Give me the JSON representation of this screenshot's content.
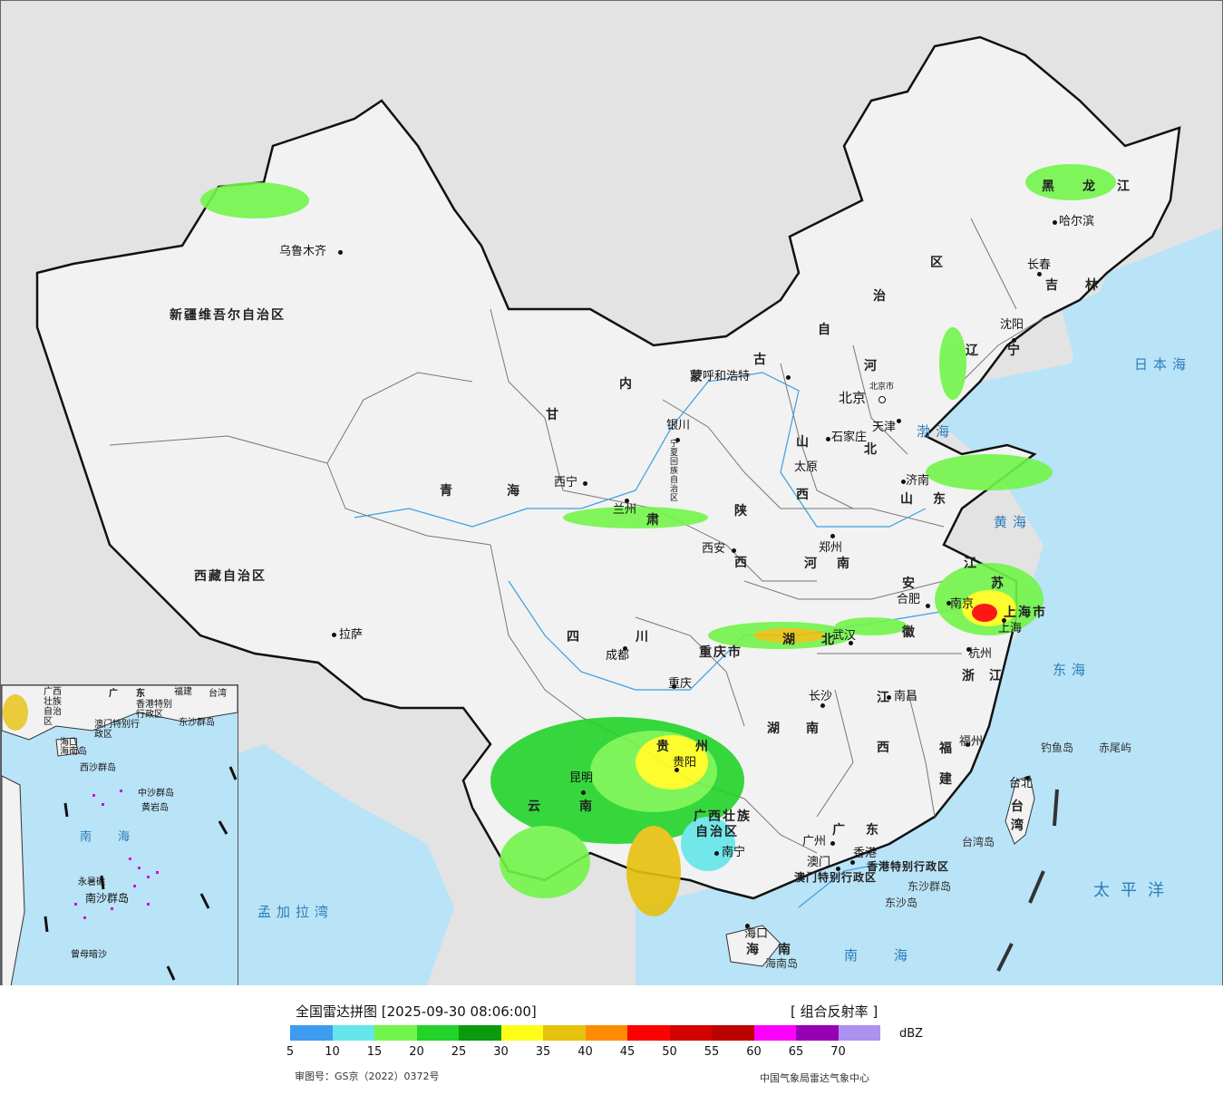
{
  "title": "全国雷达拼图 [2025-09-30 08:06:00]",
  "product": "[ 组合反射率 ]",
  "unit": "dBZ",
  "legend": {
    "colors": [
      "#3d9cf0",
      "#64e6ea",
      "#72f54a",
      "#22d32a",
      "#0b9a0b",
      "#fefe1a",
      "#e6c10d",
      "#fe8c00",
      "#fe0000",
      "#d50000",
      "#bd0000",
      "#fe00fe",
      "#9600b4",
      "#ad90f0"
    ],
    "ticks": [
      "5",
      "10",
      "15",
      "20",
      "25",
      "30",
      "35",
      "40",
      "45",
      "50",
      "55",
      "60",
      "65",
      "70"
    ]
  },
  "review_number": "审图号：GS京（2022）0372号",
  "producer": "中国气象局雷达气象中心",
  "provinces": [
    "新疆维吾尔自治区",
    "西藏自治区",
    "青",
    "海",
    "甘",
    "肃",
    "内",
    "蒙",
    "古",
    "自",
    "治",
    "区",
    "黑",
    "龙",
    "江",
    "吉",
    "林",
    "辽",
    "宁",
    "河",
    "北",
    "山",
    "西",
    "陕",
    "西",
    "四",
    "川",
    "云",
    "南",
    "贵",
    "州",
    "湖",
    "北",
    "湖",
    "南",
    "江",
    "西",
    "安",
    "徽",
    "浙",
    "江",
    "福",
    "建",
    "广",
    "东",
    "广西壮族",
    "自治区",
    "山",
    "东",
    "河",
    "南",
    "江",
    "苏",
    "台",
    "湾",
    "海",
    "南",
    "宁夏回族自治区"
  ],
  "cities": [
    "乌鲁木齐",
    "拉萨",
    "西宁",
    "兰州",
    "银川",
    "呼和浩特",
    "北京",
    "北京市",
    "天津",
    "石家庄",
    "太原",
    "西安",
    "郑州",
    "济南",
    "沈阳",
    "长春",
    "哈尔滨",
    "合肥",
    "南京",
    "上海",
    "上海市",
    "杭州",
    "南昌",
    "长沙",
    "武汉",
    "重庆",
    "重庆市",
    "成都",
    "贵阳",
    "昆明",
    "南宁",
    "广州",
    "香港",
    "澳门",
    "福州",
    "台北",
    "海口"
  ],
  "special": [
    "香港特别行政区",
    "澳门特别行政区"
  ],
  "seas": [
    "日本海",
    "渤海",
    "黄海",
    "东海",
    "太平洋",
    "南海",
    "孟加拉湾"
  ],
  "islands": [
    "钓鱼岛",
    "赤尾屿",
    "台湾岛",
    "东沙群岛",
    "东沙岛",
    "海南岛"
  ],
  "inset": {
    "labels": [
      "广西壮族自治区",
      "广",
      "东",
      "福建",
      "台湾",
      "香港特别行政区",
      "澳门特别行政区",
      "东沙群岛",
      "海口",
      "海南岛",
      "西沙群岛",
      "中沙群岛",
      "黄岩岛",
      "南",
      "海",
      "永暑礁",
      "南沙群岛",
      "曾母暗沙"
    ]
  }
}
